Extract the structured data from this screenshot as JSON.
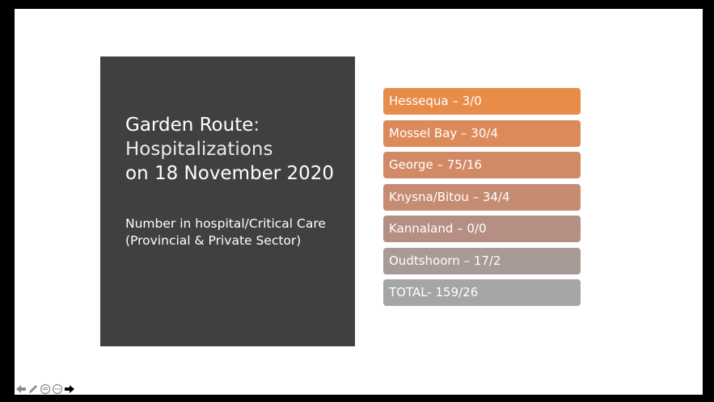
{
  "title": {
    "line1_main": "Garden Route",
    "line1_colon": ":",
    "line2": "Hospitalizations",
    "line3": "on 18 November 2020"
  },
  "subtitle": {
    "line1": "Number in hospital/Critical Care",
    "line2": "(Provincial  & Private Sector)"
  },
  "bars": [
    {
      "label": "Hessequa – 3/0",
      "color": "#E88C4A"
    },
    {
      "label": "Mossel Bay – 30/4",
      "color": "#DC8A5A"
    },
    {
      "label": "George – 75/16",
      "color": "#D28A66"
    },
    {
      "label": "Knysna/Bitou – 34/4",
      "color": "#C58C72"
    },
    {
      "label": "Kannaland – 0/0",
      "color": "#B68F84"
    },
    {
      "label": "Oudtshoorn – 17/2",
      "color": "#A79A97"
    },
    {
      "label": "TOTAL- 159/26",
      "color": "#A5A5A5"
    }
  ],
  "controls": {
    "icons": [
      "previous-arrow-icon",
      "pen-icon",
      "slide-menu-icon",
      "more-options-icon",
      "next-arrow-icon"
    ]
  }
}
